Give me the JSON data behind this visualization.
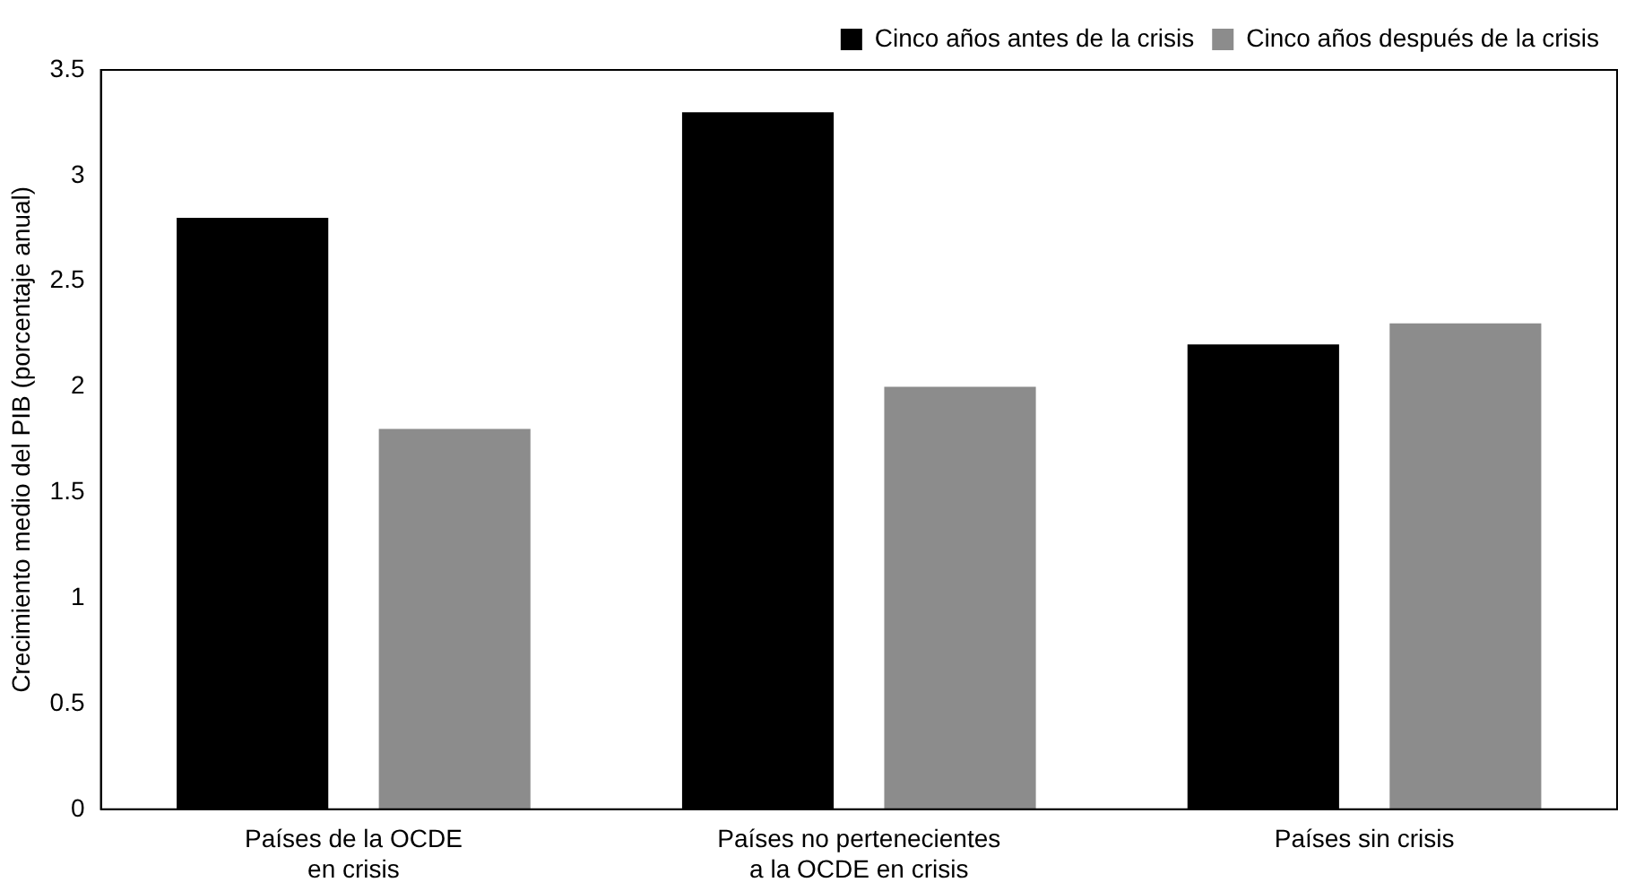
{
  "chart_data": {
    "type": "bar",
    "ylabel": "Crecimiento medio del PIB (porcentaje anual)",
    "categories": [
      "Países de la OCDE\nen crisis",
      "Países no pertenecientes\na la OCDE en crisis",
      "Países sin crisis"
    ],
    "series": [
      {
        "name": "Cinco años antes de la crisis",
        "color": "#000000",
        "values": [
          2.8,
          3.3,
          2.2
        ]
      },
      {
        "name": "Cinco años después de la crisis",
        "color": "#8c8c8c",
        "values": [
          1.8,
          2.0,
          2.3
        ]
      }
    ],
    "ylim": [
      0,
      3.5
    ],
    "yticks": [
      0,
      0.5,
      1,
      1.5,
      2,
      2.5,
      3,
      3.5
    ],
    "grid": false,
    "legend": "top right"
  }
}
